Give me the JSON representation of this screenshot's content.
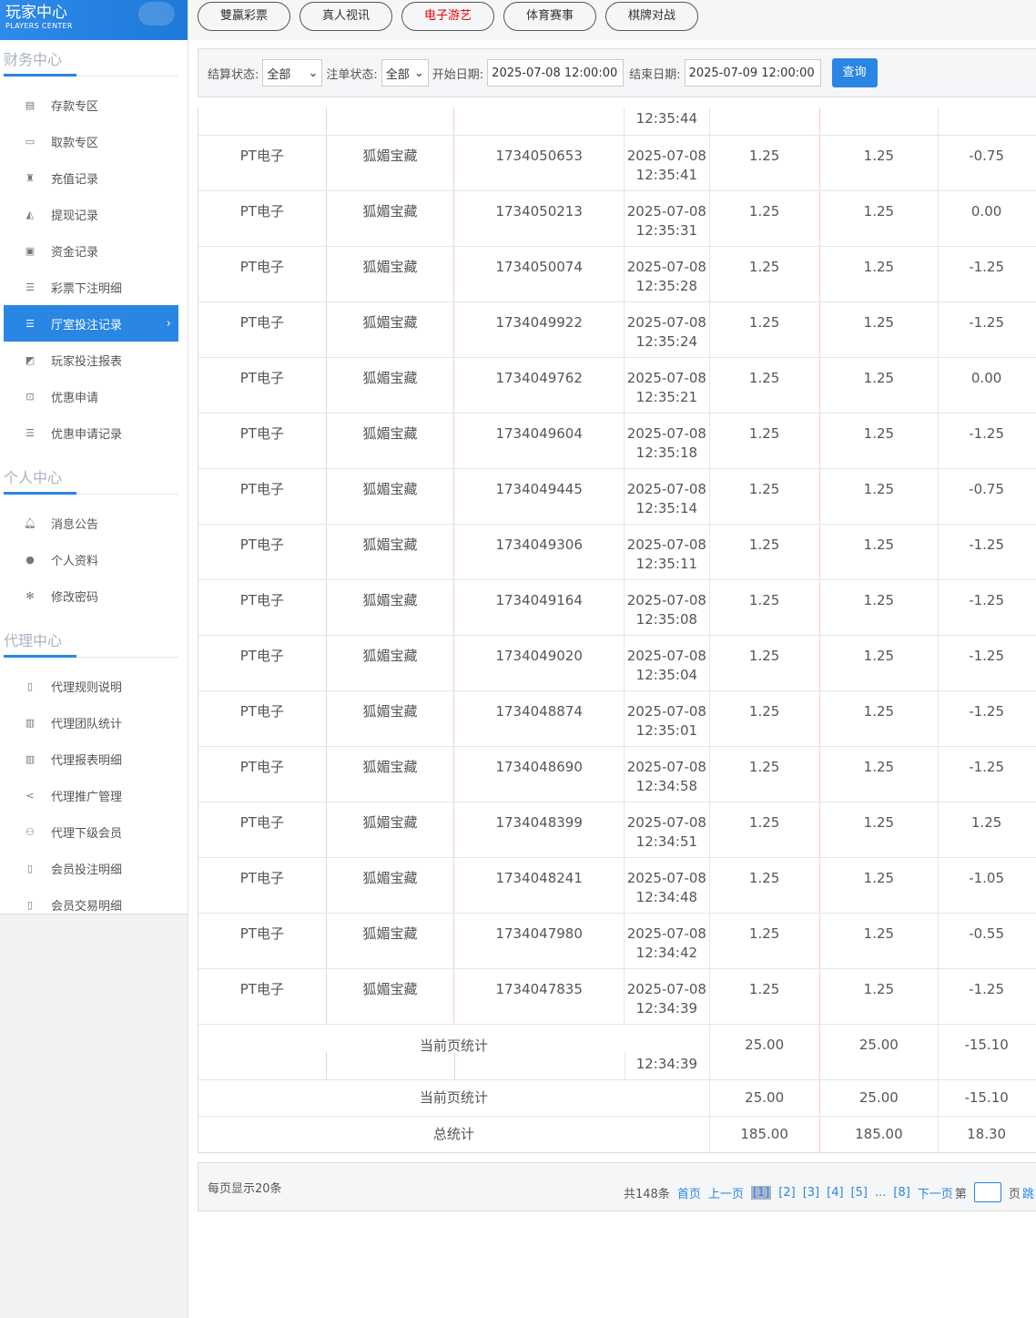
{
  "logo": {
    "title": "玩家中心",
    "subtitle": "PLAYERS CENTER"
  },
  "sidebar": [
    {
      "title": "财务中心",
      "items": [
        {
          "label": "存款专区",
          "icon": "card-icon"
        },
        {
          "label": "取款专区",
          "icon": "cash-icon"
        },
        {
          "label": "充值记录",
          "icon": "moneybag-icon"
        },
        {
          "label": "提现记录",
          "icon": "withdraw-icon"
        },
        {
          "label": "资金记录",
          "icon": "funds-icon"
        },
        {
          "label": "彩票下注明细",
          "icon": "list-icon"
        },
        {
          "label": "厅室投注记录",
          "icon": "list-icon",
          "active": true
        },
        {
          "label": "玩家投注报表",
          "icon": "chart-icon"
        },
        {
          "label": "优惠申请",
          "icon": "gift-icon"
        },
        {
          "label": "优惠申请记录",
          "icon": "list-icon"
        }
      ]
    },
    {
      "title": "个人中心",
      "items": [
        {
          "label": "消息公告",
          "icon": "bell-icon"
        },
        {
          "label": "个人资料",
          "icon": "user-icon"
        },
        {
          "label": "修改密码",
          "icon": "gear-icon"
        }
      ]
    },
    {
      "title": "代理中心",
      "items": [
        {
          "label": "代理规则说明",
          "icon": "doc-icon"
        },
        {
          "label": "代理团队统计",
          "icon": "book-icon"
        },
        {
          "label": "代理报表明细",
          "icon": "book-icon"
        },
        {
          "label": "代理推广管理",
          "icon": "share-icon"
        },
        {
          "label": "代理下级会员",
          "icon": "users-icon"
        },
        {
          "label": "会员投注明细",
          "icon": "doc-icon"
        },
        {
          "label": "会员交易明细",
          "icon": "doc-icon"
        }
      ]
    }
  ],
  "tabs": [
    {
      "label": "雙贏彩票"
    },
    {
      "label": "真人视讯"
    },
    {
      "label": "电子游艺",
      "active": true
    },
    {
      "label": "体育赛事"
    },
    {
      "label": "棋牌对战"
    }
  ],
  "filter": {
    "settle_label": "结算状态:",
    "settle_value": "全部",
    "bet_label": "注单状态:",
    "bet_value": "全部",
    "start_label": "开始日期:",
    "start_value": "2025-07-08 12:00:00",
    "end_label": "结束日期:",
    "end_value": "2025-07-09 12:00:00",
    "query": "查询"
  },
  "table": {
    "partial_time": "12:35:44",
    "rows": [
      [
        "PT电子",
        "狐媚宝藏",
        "1734050653",
        "2025-07-08",
        "12:35:41",
        "1.25",
        "1.25",
        "-0.75"
      ],
      [
        "PT电子",
        "狐媚宝藏",
        "1734050213",
        "2025-07-08",
        "12:35:31",
        "1.25",
        "1.25",
        "0.00"
      ],
      [
        "PT电子",
        "狐媚宝藏",
        "1734050074",
        "2025-07-08",
        "12:35:28",
        "1.25",
        "1.25",
        "-1.25"
      ],
      [
        "PT电子",
        "狐媚宝藏",
        "1734049922",
        "2025-07-08",
        "12:35:24",
        "1.25",
        "1.25",
        "-1.25"
      ],
      [
        "PT电子",
        "狐媚宝藏",
        "1734049762",
        "2025-07-08",
        "12:35:21",
        "1.25",
        "1.25",
        "0.00"
      ],
      [
        "PT电子",
        "狐媚宝藏",
        "1734049604",
        "2025-07-08",
        "12:35:18",
        "1.25",
        "1.25",
        "-1.25"
      ],
      [
        "PT电子",
        "狐媚宝藏",
        "1734049445",
        "2025-07-08",
        "12:35:14",
        "1.25",
        "1.25",
        "-0.75"
      ],
      [
        "PT电子",
        "狐媚宝藏",
        "1734049306",
        "2025-07-08",
        "12:35:11",
        "1.25",
        "1.25",
        "-1.25"
      ],
      [
        "PT电子",
        "狐媚宝藏",
        "1734049164",
        "2025-07-08",
        "12:35:08",
        "1.25",
        "1.25",
        "-1.25"
      ],
      [
        "PT电子",
        "狐媚宝藏",
        "1734049020",
        "2025-07-08",
        "12:35:04",
        "1.25",
        "1.25",
        "-1.25"
      ],
      [
        "PT电子",
        "狐媚宝藏",
        "1734048874",
        "2025-07-08",
        "12:35:01",
        "1.25",
        "1.25",
        "-1.25"
      ],
      [
        "PT电子",
        "狐媚宝藏",
        "1734048690",
        "2025-07-08",
        "12:34:58",
        "1.25",
        "1.25",
        "-1.25"
      ],
      [
        "PT电子",
        "狐媚宝藏",
        "1734048399",
        "2025-07-08",
        "12:34:51",
        "1.25",
        "1.25",
        "1.25"
      ],
      [
        "PT电子",
        "狐媚宝藏",
        "1734048241",
        "2025-07-08",
        "12:34:48",
        "1.25",
        "1.25",
        "-1.05"
      ],
      [
        "PT电子",
        "狐媚宝藏",
        "1734047980",
        "2025-07-08",
        "12:34:42",
        "1.25",
        "1.25",
        "-0.55"
      ],
      [
        "PT电子",
        "狐媚宝藏",
        "1734047835",
        "2025-07-08",
        "12:34:39",
        "1.25",
        "1.25",
        "-1.25"
      ]
    ],
    "summary_overlay": {
      "label": "当前页统计",
      "time": "12:34:39",
      "a": "25.00",
      "b": "25.00",
      "c": "-15.10"
    },
    "page_total": {
      "label": "当前页统计",
      "a": "25.00",
      "b": "25.00",
      "c": "-15.10"
    },
    "grand_total": {
      "label": "总统计",
      "a": "185.00",
      "b": "185.00",
      "c": "18.30"
    }
  },
  "pager": {
    "per_page": "每页显示20条",
    "total": "共148条",
    "first": "首页",
    "prev": "上一页",
    "pages": [
      "[1]",
      "[2]",
      "[3]",
      "[4]",
      "[5]"
    ],
    "ellipsis": "...",
    "last_page": "[8]",
    "next": "下一页",
    "goto_prefix": "第",
    "goto_suffix": "页",
    "jump": "跳"
  }
}
